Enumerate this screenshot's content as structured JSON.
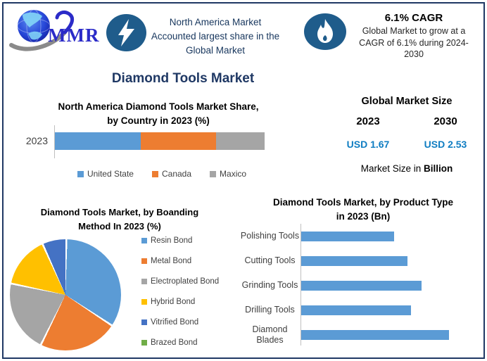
{
  "page": {
    "border_color": "#1F3864",
    "accent_navy": "#1F3864",
    "icon_circle_color": "#1F5C8B"
  },
  "header": {
    "logo_text": "MMR",
    "highlight1": {
      "icon": "lightning-icon",
      "lines": [
        "North America Market",
        "Accounted largest share in the",
        "Global Market"
      ]
    },
    "highlight2": {
      "icon": "flame-icon",
      "title": "6.1% CAGR",
      "lines": [
        "Global Market to grow at a",
        "CAGR of 6.1% during 2024-",
        "2030"
      ]
    }
  },
  "main_title": "Diamond Tools Market",
  "market_size": {
    "title": "Global Market Size",
    "years": [
      "2023",
      "2030"
    ],
    "values": [
      "USD 1.67",
      "USD 2.53"
    ],
    "value_color": "#0F7DC2",
    "note_prefix": "Market Size in ",
    "note_bold": "Billion"
  },
  "chart_data": [
    {
      "id": "na-country-share",
      "type": "bar",
      "stacked": true,
      "orientation": "horizontal",
      "title_lines": [
        "North America Diamond Tools Market Share,",
        "by Country in 2023 (%)"
      ],
      "categories": [
        "2023"
      ],
      "series": [
        {
          "name": "United State",
          "values": [
            41
          ],
          "color": "#5B9BD5"
        },
        {
          "name": "Canada",
          "values": [
            36
          ],
          "color": "#ED7D31"
        },
        {
          "name": "Maxico",
          "values": [
            23
          ],
          "color": "#A5A5A5"
        }
      ],
      "xlim": [
        0,
        100
      ],
      "legend_position": "bottom",
      "grid": false
    },
    {
      "id": "bonding-method",
      "type": "pie",
      "title_lines": [
        "Diamond Tools Market, by Boanding",
        "Method In 2023 (%)"
      ],
      "labels": [
        "Resin Bond",
        "Metal Bond",
        "Electroplated Bond",
        "Hybrid Bond",
        "Vitrified Bond",
        "Brazed Bond"
      ],
      "values": [
        34,
        23,
        21,
        15,
        7,
        0
      ],
      "colors": [
        "#5B9BD5",
        "#ED7D31",
        "#A5A5A5",
        "#FFC000",
        "#4472C4",
        "#70AD47"
      ],
      "legend_position": "right",
      "start_angle_deg": 0
    },
    {
      "id": "product-type",
      "type": "bar",
      "orientation": "horizontal",
      "title_lines": [
        "Diamond Tools Market, by Product Type",
        "in 2023 (Bn)"
      ],
      "categories": [
        "Polishing Tools",
        "Cutting Tools",
        "Grinding Tools",
        "Drilling Tools",
        "Diamond Blades"
      ],
      "values": [
        0.27,
        0.31,
        0.35,
        0.32,
        0.43
      ],
      "color": "#5B9BD5",
      "xlim": [
        0,
        0.44
      ],
      "grid": false
    }
  ]
}
